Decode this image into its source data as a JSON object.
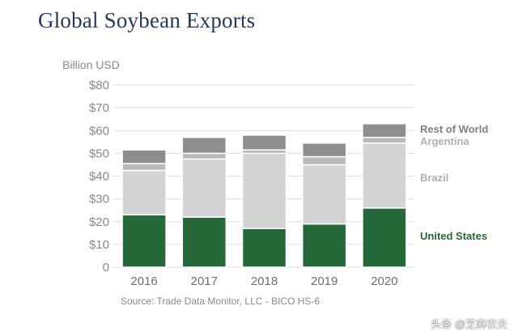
{
  "chart_data": {
    "type": "bar",
    "stacked": true,
    "title": "Global Soybean Exports",
    "ylabel": "Billion USD",
    "categories": [
      "2016",
      "2017",
      "2018",
      "2019",
      "2020"
    ],
    "ylim": [
      0,
      80
    ],
    "yticks": [
      0,
      10,
      20,
      30,
      40,
      50,
      60,
      70,
      80
    ],
    "ytick_labels": [
      "0",
      "$10",
      "$20",
      "$30",
      "$40",
      "$50",
      "$60",
      "$70",
      "$80"
    ],
    "series": [
      {
        "name": "United States",
        "color": "#25693a",
        "label_color": "#25693a",
        "values": [
          23,
          22,
          17,
          19,
          26
        ]
      },
      {
        "name": "Brazil",
        "color": "#d3d3d3",
        "label_color": "#b0b0b0",
        "values": [
          19.5,
          25.5,
          33,
          26,
          28.5
        ]
      },
      {
        "name": "Argentina",
        "color": "#b9b9b9",
        "label_color": "#b0b0b0",
        "values": [
          3,
          2.5,
          1.5,
          3.5,
          2.5
        ]
      },
      {
        "name": "Rest of World",
        "color": "#8e8e8e",
        "label_color": "#808080",
        "values": [
          6,
          7,
          6.5,
          6,
          6
        ]
      }
    ],
    "legend_placement": "right"
  },
  "source": "Source: Trade Data Monitor, LLC - BICO HS-6",
  "watermark": "头条 @芝麻农夫",
  "colors": {
    "title": "#1f3a5a",
    "grid": "#dcdcdc",
    "axis_text": "#8a8a8a"
  }
}
